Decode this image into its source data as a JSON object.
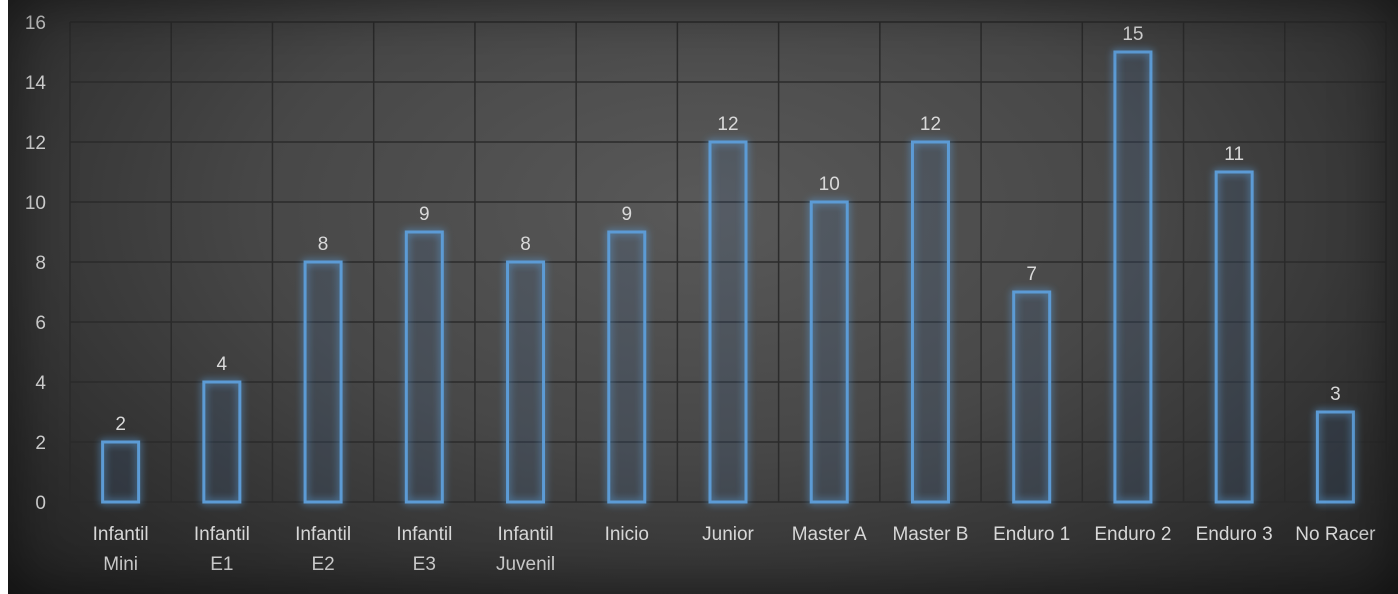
{
  "chart_data": {
    "type": "bar",
    "title": "",
    "xlabel": "",
    "ylabel": "",
    "ylim": [
      0,
      16
    ],
    "yticks": [
      "0",
      "2",
      "4",
      "6",
      "8",
      "10",
      "12",
      "14",
      "16"
    ],
    "grid": true,
    "legend": "none",
    "categories": [
      [
        "Infantil",
        "Mini"
      ],
      [
        "Infantil",
        "E1"
      ],
      [
        "Infantil",
        "E2"
      ],
      [
        "Infantil",
        "E3"
      ],
      [
        "Infantil",
        "Juvenil"
      ],
      [
        "Inicio"
      ],
      [
        "Junior"
      ],
      [
        "Master A"
      ],
      [
        "Master B"
      ],
      [
        "Enduro 1"
      ],
      [
        "Enduro 2"
      ],
      [
        "Enduro 3"
      ],
      [
        "No Racer"
      ]
    ],
    "values": [
      2,
      4,
      8,
      9,
      8,
      9,
      12,
      10,
      12,
      7,
      15,
      11,
      3
    ],
    "data_labels": [
      "2",
      "4",
      "8",
      "9",
      "8",
      "9",
      "12",
      "10",
      "12",
      "7",
      "15",
      "11",
      "3"
    ],
    "colors": {
      "bar_stroke": "#5b9bd5",
      "bar_glow": "#4a90e2",
      "text": "#d9d9d9",
      "grid": "#2b2b2b"
    }
  }
}
